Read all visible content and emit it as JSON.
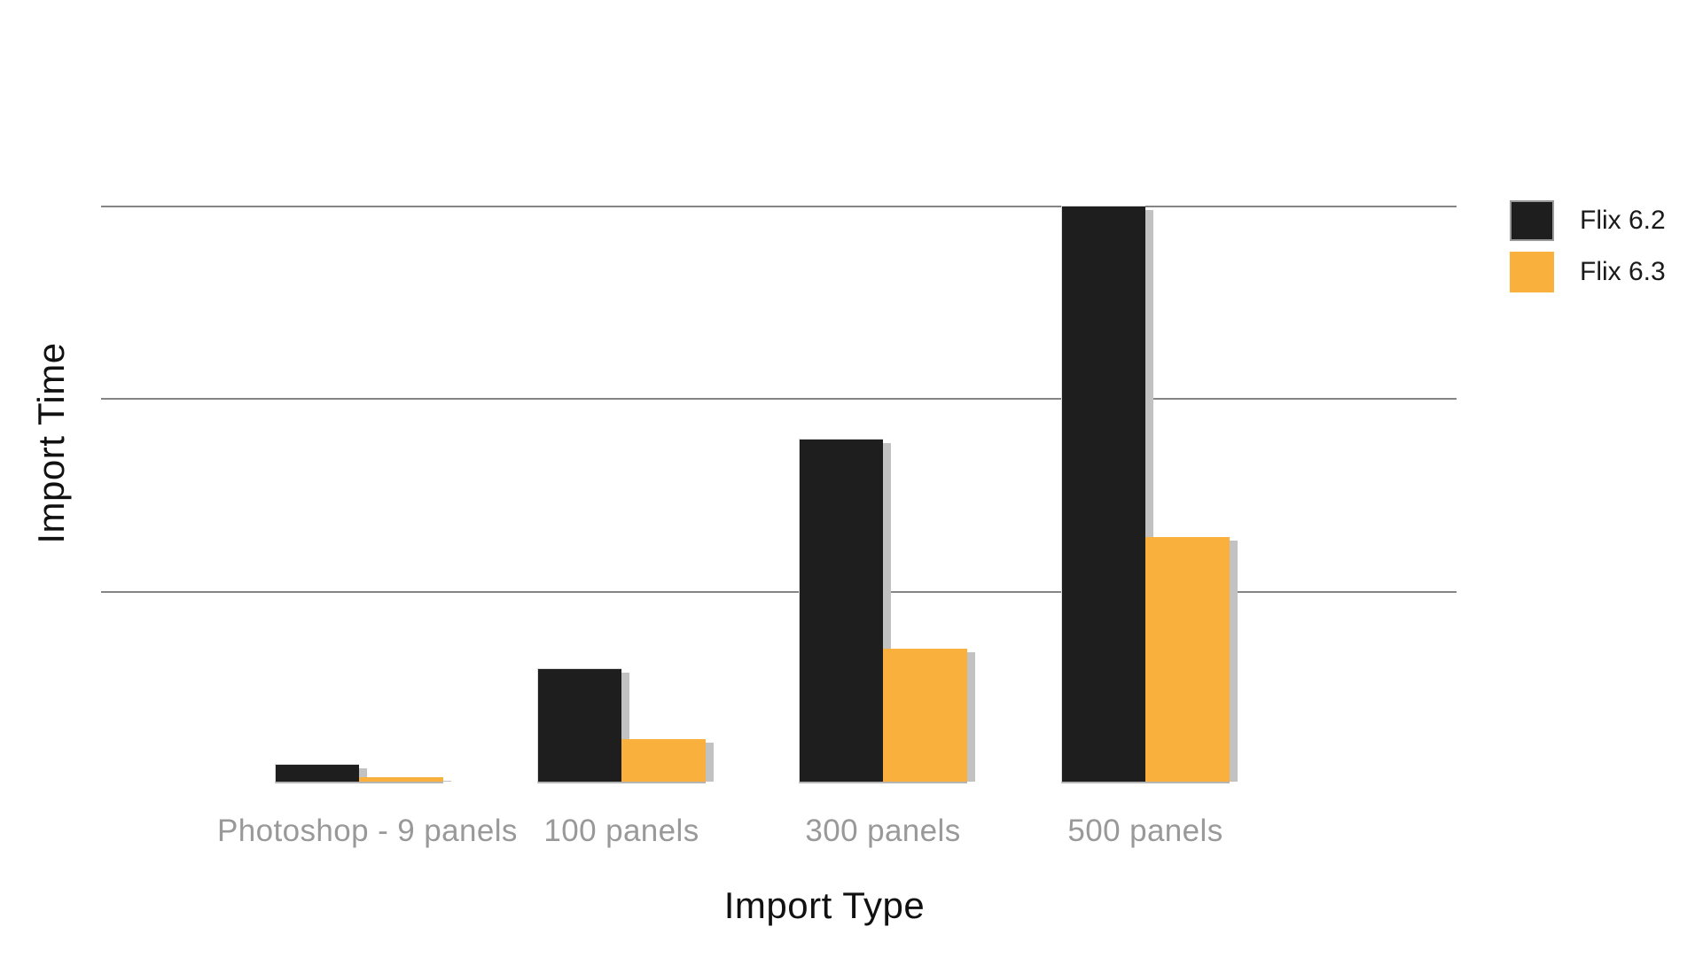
{
  "chart_data": {
    "type": "bar",
    "title": "",
    "xlabel": "Import Type",
    "ylabel": "Import Time",
    "categories": [
      "Photoshop - 9 panels",
      "100 panels",
      "300 panels",
      "500 panels"
    ],
    "series": [
      {
        "name": "Flix 6.2",
        "color": "#1E1E1E",
        "values": [
          0.1,
          0.6,
          1.79,
          3.0
        ]
      },
      {
        "name": "Flix 6.3",
        "color": "#FAB03C",
        "values": [
          0.03,
          0.23,
          0.7,
          1.28
        ]
      }
    ],
    "ylim": [
      0,
      3
    ],
    "gridline_values": [
      1,
      2,
      3
    ],
    "y_tick_labels_visible": false,
    "value_units": "relative (no y-axis tick labels shown)",
    "grid": "horizontal",
    "legend_position": "top-right",
    "bar_style": "grouped, flat with light gray drop shadow offset right"
  },
  "colors": {
    "background": "#FFFFFF",
    "bar_black": "#1E1E1E",
    "bar_orange": "#FAB03C",
    "shadow": "#C2C2C2",
    "gridline": "#858585",
    "bar_edge": "#B5B5B5",
    "category_label": "#999999",
    "axis_title": "#111111",
    "legend_text": "#1A1A1A"
  }
}
